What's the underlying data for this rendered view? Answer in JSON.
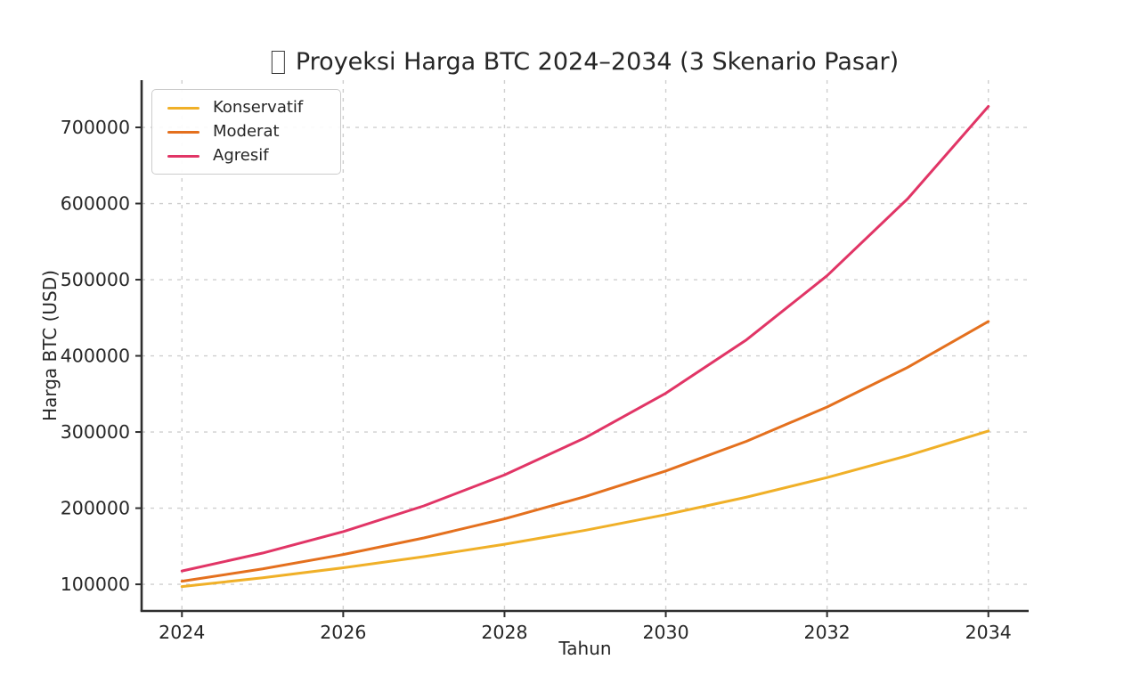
{
  "title": {
    "icon": "missing-glyph",
    "text": "Proyeksi Harga BTC 2024–2034 (3 Skenario Pasar)"
  },
  "chart_data": {
    "type": "line",
    "x": [
      2024,
      2025,
      2026,
      2027,
      2028,
      2029,
      2030,
      2031,
      2032,
      2033,
      2034
    ],
    "series": [
      {
        "name": "Konservatif",
        "color": "#f0b028",
        "values": [
          97000,
          108600,
          121700,
          136300,
          152600,
          170900,
          191500,
          214400,
          240200,
          269000,
          301300
        ]
      },
      {
        "name": "Moderat",
        "color": "#e4701e",
        "values": [
          104000,
          120300,
          139100,
          160900,
          186000,
          215200,
          248800,
          287800,
          332800,
          384900,
          445100
        ]
      },
      {
        "name": "Agresif",
        "color": "#e13566",
        "values": [
          117500,
          141000,
          169200,
          203000,
          243600,
          292400,
          350900,
          421000,
          505200,
          606300,
          727500
        ]
      }
    ],
    "xlabel": "Tahun",
    "ylabel": "Harga BTC (USD)",
    "xticks": [
      2024,
      2026,
      2028,
      2030,
      2032,
      2034
    ],
    "yticks": [
      100000,
      200000,
      300000,
      400000,
      500000,
      600000,
      700000
    ],
    "xlim": [
      2023.5,
      2034.5
    ],
    "ylim": [
      65000,
      762000
    ],
    "grid": true,
    "grid_style": "dashed",
    "legend_position": "upper-left",
    "colors": {
      "axis": "#2e2e2e",
      "tick_text": "#262626",
      "gridline": "#cfcfcf",
      "background": "#ffffff"
    }
  }
}
